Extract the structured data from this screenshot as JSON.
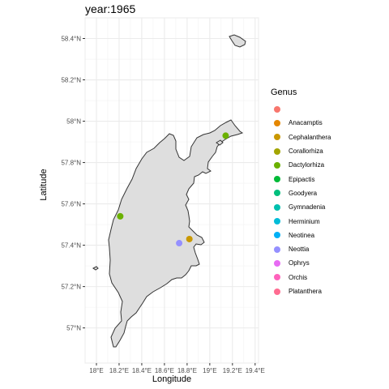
{
  "title": "year:1965",
  "axes": {
    "xlabel": "Longitude",
    "ylabel": "Latitude",
    "xticks": [
      {
        "value": 18.0,
        "label": "18°E"
      },
      {
        "value": 18.2,
        "label": "18.2°E"
      },
      {
        "value": 18.4,
        "label": "18.4°E"
      },
      {
        "value": 18.6,
        "label": "18.6°E"
      },
      {
        "value": 18.8,
        "label": "18.8°E"
      },
      {
        "value": 19.0,
        "label": "19°E"
      },
      {
        "value": 19.2,
        "label": "19.2°E"
      },
      {
        "value": 19.4,
        "label": "19.4°E"
      }
    ],
    "yticks": [
      {
        "value": 57.0,
        "label": "57°N"
      },
      {
        "value": 57.2,
        "label": "57.2°N"
      },
      {
        "value": 57.4,
        "label": "57.4°N"
      },
      {
        "value": 57.6,
        "label": "57.6°N"
      },
      {
        "value": 57.8,
        "label": "57.8°N"
      },
      {
        "value": 58.0,
        "label": "58°N"
      },
      {
        "value": 58.2,
        "label": "58.2°N"
      },
      {
        "value": 58.4,
        "label": "58.4°N"
      }
    ],
    "xlim": [
      17.9,
      19.43
    ],
    "ylim": [
      56.83,
      58.5
    ]
  },
  "legend": {
    "title": "Genus",
    "entries": [
      {
        "label": "",
        "color": "#F8766D"
      },
      {
        "label": "Anacamptis",
        "color": "#E58700"
      },
      {
        "label": "Cephalanthera",
        "color": "#C99800"
      },
      {
        "label": "Corallorhiza",
        "color": "#A3A500"
      },
      {
        "label": "Dactylorhiza",
        "color": "#6BB100"
      },
      {
        "label": "Epipactis",
        "color": "#00BA38"
      },
      {
        "label": "Goodyera",
        "color": "#00BF7D"
      },
      {
        "label": "Gymnadenia",
        "color": "#00C0AF"
      },
      {
        "label": "Herminium",
        "color": "#00BCD8"
      },
      {
        "label": "Neotinea",
        "color": "#00B0F6"
      },
      {
        "label": "Neottia",
        "color": "#9590FF"
      },
      {
        "label": "Ophrys",
        "color": "#E76BF3"
      },
      {
        "label": "Orchis",
        "color": "#FF62BC"
      },
      {
        "label": "Platanthera",
        "color": "#FF6C91"
      }
    ]
  },
  "chart_data": {
    "type": "scatter",
    "title": "year:1965",
    "xlabel": "Longitude",
    "ylabel": "Latitude",
    "xlim": [
      17.9,
      19.43
    ],
    "ylim": [
      56.83,
      58.5
    ],
    "grid": true,
    "legend_position": "right",
    "series": [
      {
        "name": "Cephalanthera",
        "points": [
          {
            "x": 18.82,
            "y": 57.43
          }
        ]
      },
      {
        "name": "Dactylorhiza",
        "points": [
          {
            "x": 18.21,
            "y": 57.54
          },
          {
            "x": 19.14,
            "y": 57.93
          }
        ]
      },
      {
        "name": "Neottia",
        "points": [
          {
            "x": 18.73,
            "y": 57.41
          }
        ]
      }
    ]
  }
}
